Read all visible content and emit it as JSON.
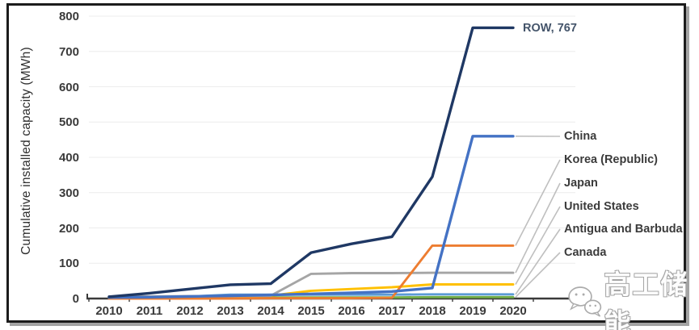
{
  "watermark": {
    "icon": "wechat-icon",
    "text": "高工储能"
  },
  "chart_data": {
    "type": "line",
    "title": "",
    "xlabel": "",
    "ylabel": "Cumulative installed capacity (MWh)",
    "ylim": [
      0,
      800
    ],
    "yticks": [
      0,
      100,
      200,
      300,
      400,
      500,
      600,
      700,
      800
    ],
    "grid": true,
    "legend_position": "end-of-line labels, right side",
    "categories": [
      "2010",
      "2011",
      "2012",
      "2013",
      "2014",
      "2015",
      "2016",
      "2017",
      "2018",
      "2019",
      "2020"
    ],
    "series": [
      {
        "name": "ROW",
        "label": "ROW, 767",
        "color": "#1F3864",
        "end_value": 767,
        "values": [
          5,
          15,
          27,
          39,
          42,
          130,
          155,
          175,
          345,
          767,
          767
        ]
      },
      {
        "name": "China",
        "label": "China",
        "color": "#4472C4",
        "end_value": 460,
        "values": [
          3,
          4,
          6,
          8,
          10,
          13,
          16,
          20,
          30,
          460,
          460
        ]
      },
      {
        "name": "Korea (Republic)",
        "label": "Korea (Republic)",
        "color": "#ED7D31",
        "end_value": 150,
        "values": [
          0,
          0,
          0,
          0,
          1,
          1,
          1,
          2,
          150,
          150,
          150
        ]
      },
      {
        "name": "Japan",
        "label": "Japan",
        "color": "#A5A5A5",
        "end_value": 73,
        "values": [
          6,
          6,
          7,
          7,
          8,
          70,
          72,
          72,
          73,
          73,
          73
        ]
      },
      {
        "name": "United States",
        "label": "United States",
        "color": "#FFC000",
        "end_value": 40,
        "values": [
          3,
          3,
          4,
          5,
          8,
          22,
          27,
          32,
          40,
          40,
          40
        ]
      },
      {
        "name": "Antigua and Barbuda",
        "label": "Antigua and Barbuda",
        "color": "#5B9BD5",
        "end_value": 12,
        "values": [
          2,
          3,
          6,
          11,
          11,
          11,
          11,
          11,
          12,
          12,
          12
        ]
      },
      {
        "name": "Canada",
        "label": "Canada",
        "color": "#70AD47",
        "end_value": 4,
        "values": [
          1,
          1,
          2,
          3,
          3,
          3,
          3,
          3,
          4,
          4,
          4
        ]
      }
    ]
  }
}
